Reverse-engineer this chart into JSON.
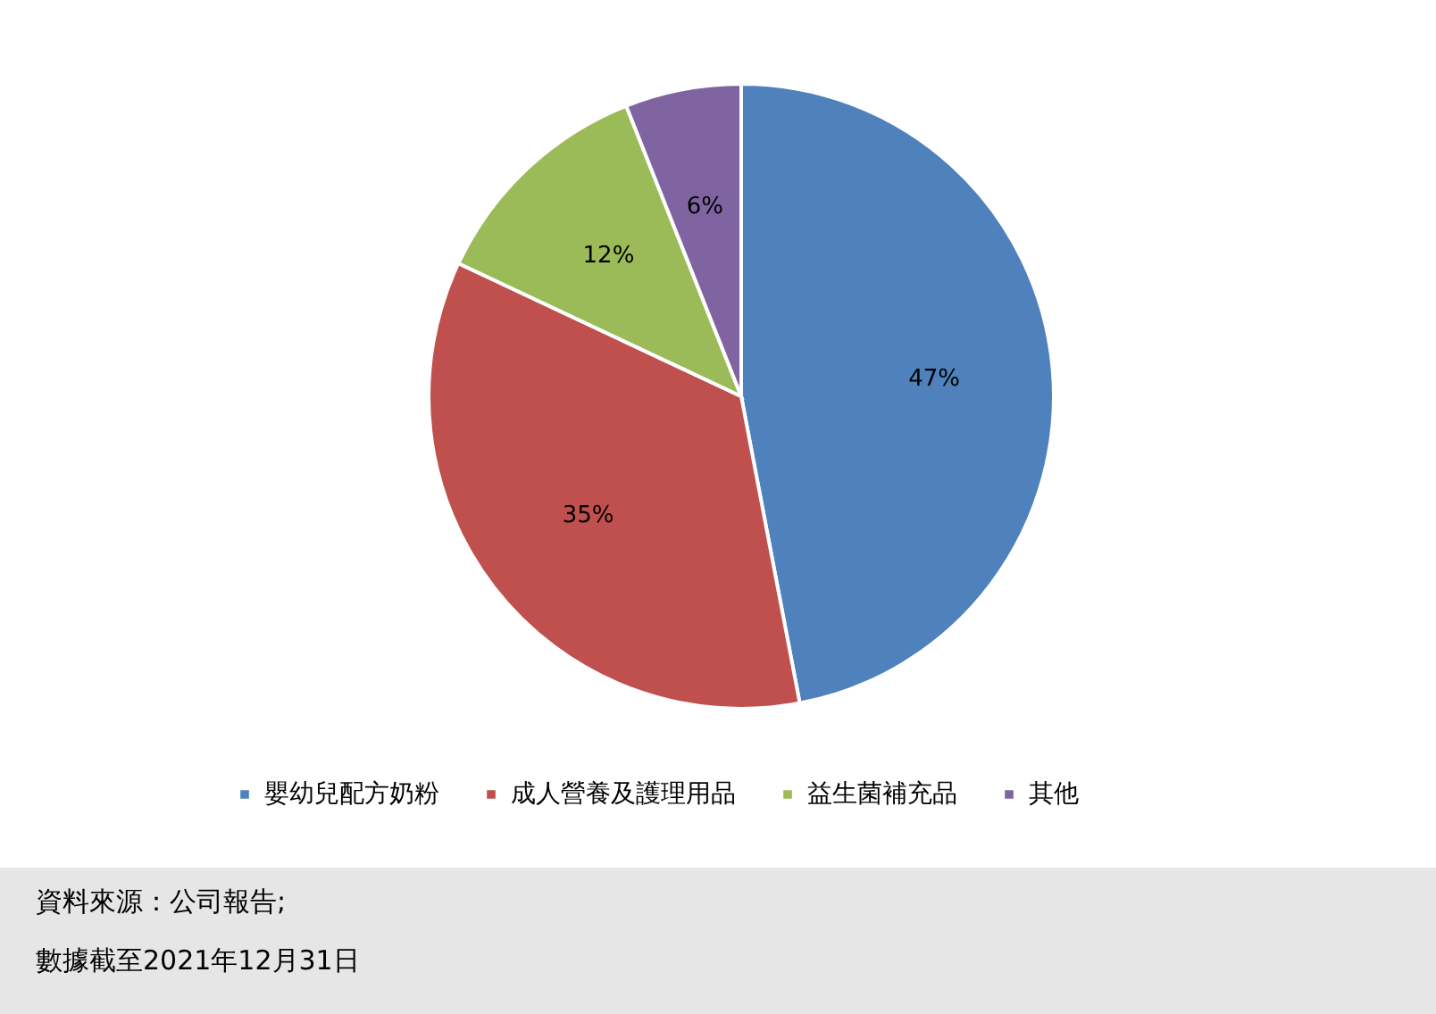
{
  "chart_data": {
    "type": "pie",
    "categories": [
      "嬰幼兒配方奶粉",
      "成人營養及護理用品",
      "益生菌補充品",
      "其他"
    ],
    "values": [
      47,
      35,
      12,
      6
    ],
    "colors": [
      "#4f81bd",
      "#c0504d",
      "#9bbb59",
      "#8064a2"
    ],
    "value_labels": [
      "47%",
      "35%",
      "12%",
      "6%"
    ],
    "legend": "bottom",
    "annotations": [
      "資料來源：公司報告;",
      "數據截至2021年12月31日"
    ]
  }
}
